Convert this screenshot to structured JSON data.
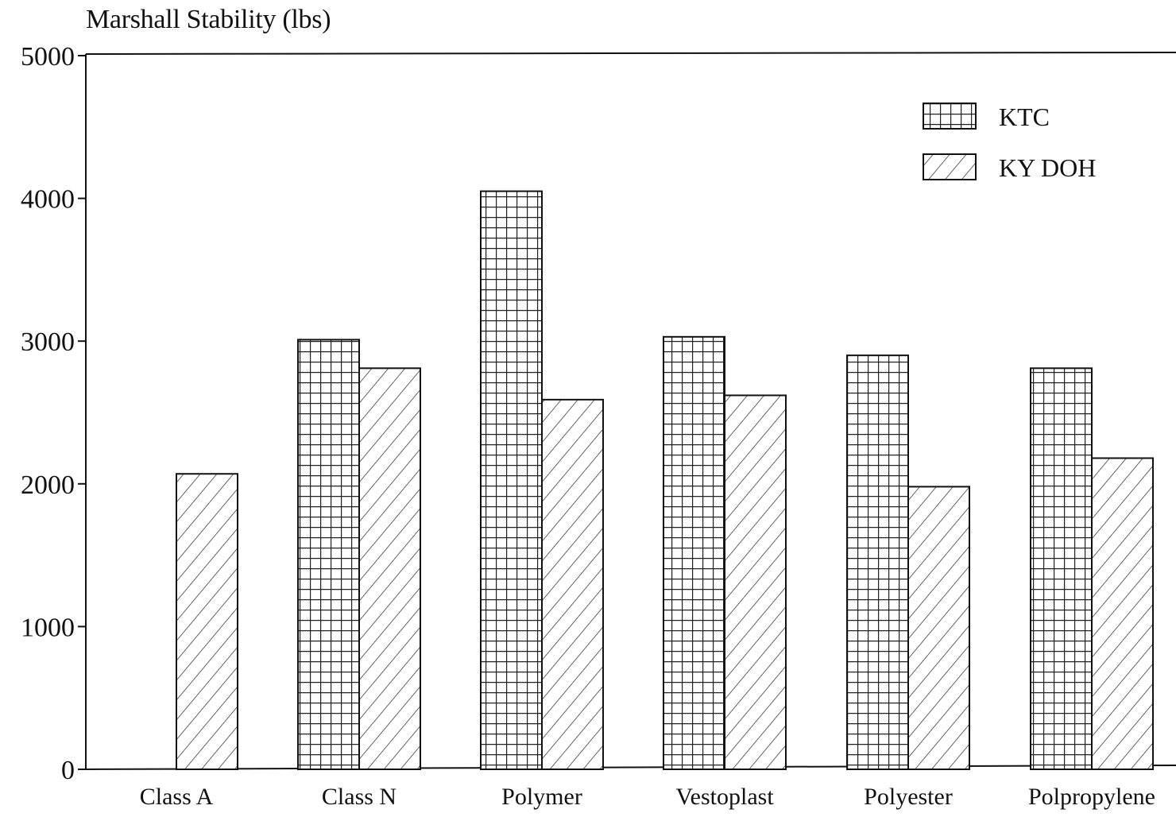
{
  "chart_data": {
    "type": "bar",
    "title": "",
    "ylabel": "Marshall Stability (lbs)",
    "xlabel": "",
    "ylim": [
      0,
      5000
    ],
    "yticks": [
      "0",
      "1000",
      "2000",
      "3000",
      "4000",
      "5000"
    ],
    "categories": [
      "Class A",
      "Class N",
      "Polymer",
      "Vestoplast",
      "Polyester",
      "Polpropylene"
    ],
    "series": [
      {
        "name": "KTC",
        "pattern": "grid",
        "values": [
          null,
          3010,
          4050,
          3030,
          2900,
          2810
        ]
      },
      {
        "name": "KY DOH",
        "pattern": "hatch",
        "values": [
          2070,
          2810,
          2590,
          2620,
          1980,
          2180
        ]
      }
    ],
    "legend": {
      "position": "top-right"
    },
    "grid": false,
    "colors": {
      "ink": "#111111",
      "background": "#ffffff"
    }
  }
}
